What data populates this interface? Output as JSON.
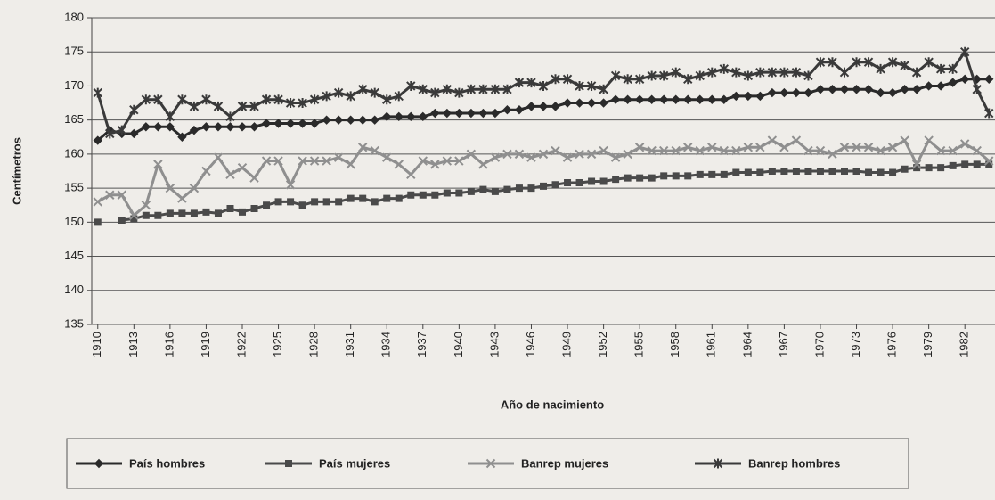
{
  "chart_data": {
    "type": "line",
    "x_label": "Año de nacimiento",
    "y_label": "Centímetros",
    "categories": [
      "1910",
      null,
      null,
      "1913",
      null,
      null,
      "1916",
      null,
      null,
      "1919",
      null,
      null,
      "1922",
      null,
      null,
      "1925",
      null,
      null,
      "1928",
      null,
      null,
      "1931",
      null,
      null,
      "1934",
      null,
      null,
      "1937",
      null,
      null,
      "1940",
      null,
      null,
      "1943",
      null,
      null,
      "1946",
      null,
      null,
      "1949",
      null,
      null,
      "1952",
      null,
      null,
      "1955",
      null,
      null,
      "1958",
      null,
      null,
      "1961",
      null,
      null,
      "1964",
      null,
      null,
      "1967",
      null,
      null,
      "1970",
      null,
      null,
      "1973",
      null,
      null,
      "1976",
      null,
      null,
      "1979",
      null,
      null,
      "1982",
      null,
      null
    ],
    "ylim": [
      135,
      180
    ],
    "yticks": [
      135,
      140,
      145,
      150,
      155,
      160,
      165,
      170,
      175,
      180
    ],
    "grid": true,
    "legend": "bottom",
    "series": [
      {
        "name": "País hombres",
        "color": "#2a2a2a",
        "marker": "diamond",
        "values": [
          162,
          163.5,
          163,
          163,
          164,
          164,
          164,
          162.5,
          163.5,
          164,
          164,
          164,
          164,
          164,
          164.5,
          164.5,
          164.5,
          164.5,
          164.5,
          165,
          165,
          165,
          165,
          165,
          165.5,
          165.5,
          165.5,
          165.5,
          166,
          166,
          166,
          166,
          166,
          166,
          166.5,
          166.5,
          167,
          167,
          167,
          167.5,
          167.5,
          167.5,
          167.5,
          168,
          168,
          168,
          168,
          168,
          168,
          168,
          168,
          168,
          168,
          168.5,
          168.5,
          168.5,
          169,
          169,
          169,
          169,
          169.5,
          169.5,
          169.5,
          169.5,
          169.5,
          169,
          169,
          169.5,
          169.5,
          170,
          170,
          170.5,
          171,
          171,
          171
        ]
      },
      {
        "name": "País mujeres",
        "color": "#4a4a4a",
        "marker": "square",
        "values": [
          150,
          null,
          150.3,
          150.5,
          151,
          151,
          151.3,
          151.3,
          151.3,
          151.5,
          151.3,
          152,
          151.5,
          152,
          152.5,
          153,
          153,
          152.5,
          153,
          153,
          153,
          153.5,
          153.5,
          153,
          153.5,
          153.5,
          154,
          154,
          154,
          154.3,
          154.3,
          154.5,
          154.8,
          154.5,
          154.8,
          155,
          155,
          155.3,
          155.5,
          155.8,
          155.8,
          156,
          156,
          156.3,
          156.5,
          156.5,
          156.5,
          156.8,
          156.8,
          156.8,
          157,
          157,
          157,
          157.3,
          157.3,
          157.3,
          157.5,
          157.5,
          157.5,
          157.5,
          157.5,
          157.5,
          157.5,
          157.5,
          157.3,
          157.3,
          157.3,
          157.8,
          158,
          158,
          158,
          158.3,
          158.5,
          158.5,
          158.5
        ]
      },
      {
        "name": "Banrep mujeres",
        "color": "#8f8f8f",
        "marker": "x",
        "values": [
          153,
          154,
          154,
          151,
          152.5,
          158.5,
          155,
          153.5,
          155,
          157.5,
          159.5,
          157,
          158,
          156.5,
          159,
          159,
          155.5,
          159,
          159,
          159,
          159.5,
          158.5,
          161,
          160.5,
          159.5,
          158.5,
          157,
          159,
          158.5,
          159,
          159,
          160,
          158.5,
          159.5,
          160,
          160,
          159.5,
          160,
          160.5,
          159.5,
          160,
          160,
          160.5,
          159.5,
          160,
          161,
          160.5,
          160.5,
          160.5,
          161,
          160.5,
          161,
          160.5,
          160.5,
          161,
          161,
          162,
          161,
          162,
          160.5,
          160.5,
          160,
          161,
          161,
          161,
          160.5,
          161,
          162,
          158.5,
          162,
          160.5,
          160.5,
          161.5,
          160.5,
          159
        ]
      },
      {
        "name": "Banrep hombres",
        "color": "#3a3a3a",
        "marker": "star",
        "values": [
          169,
          163,
          163.5,
          166.5,
          168,
          168,
          165.5,
          168,
          167,
          168,
          167,
          165.5,
          167,
          167,
          168,
          168,
          167.5,
          167.5,
          168,
          168.5,
          169,
          168.5,
          169.5,
          169,
          168,
          168.5,
          170,
          169.5,
          169,
          169.5,
          169,
          169.5,
          169.5,
          169.5,
          169.5,
          170.5,
          170.5,
          170,
          171,
          171,
          170,
          170,
          169.5,
          171.5,
          171,
          171,
          171.5,
          171.5,
          172,
          171,
          171.5,
          172,
          172.5,
          172,
          171.5,
          172,
          172,
          172,
          172,
          171.5,
          173.5,
          173.5,
          172,
          173.5,
          173.5,
          172.5,
          173.5,
          173,
          172,
          173.5,
          172.5,
          172.5,
          175,
          169.5,
          166
        ]
      }
    ]
  }
}
